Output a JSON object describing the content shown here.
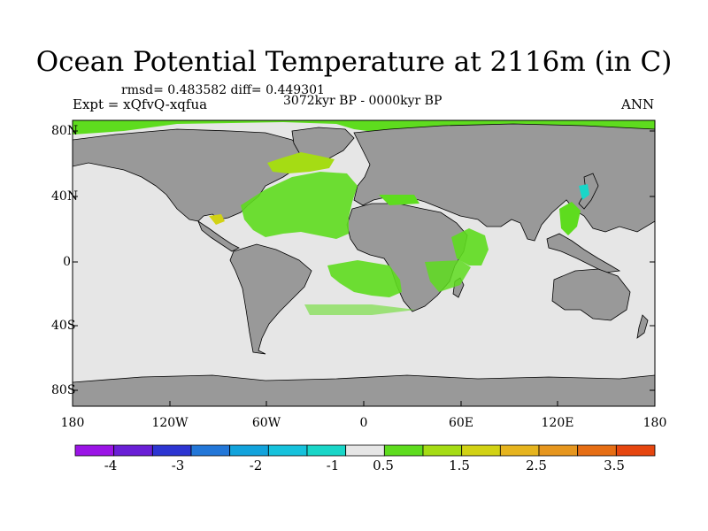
{
  "title": "Ocean Potential Temperature at 2116m (in C)",
  "stats": "rmsd= 0.483582 diff= 0.449301",
  "experiment": "Expt = xQfvQ-xqfua",
  "period": "3072kyr BP - 0000kyr BP",
  "season": "ANN",
  "y_axis_labels": [
    "80N",
    "40N",
    "0",
    "40S",
    "80S"
  ],
  "x_axis_labels": [
    "180",
    "120W",
    "60W",
    "0",
    "60E",
    "120E",
    "180"
  ],
  "colorbar": {
    "colors": [
      "#9b14e6",
      "#6a1fd6",
      "#2d35d2",
      "#2377d8",
      "#12a3dc",
      "#16c2dc",
      "#19d6c8",
      "#e6e6e6",
      "#5edc1e",
      "#a5dc14",
      "#d2d214",
      "#e6b41e",
      "#e6961e",
      "#e66e14",
      "#e6460f"
    ],
    "labels": [
      "-4",
      "-3",
      "-2",
      "-1",
      "0.5",
      "1.5",
      "2.5",
      "3.5"
    ]
  }
}
